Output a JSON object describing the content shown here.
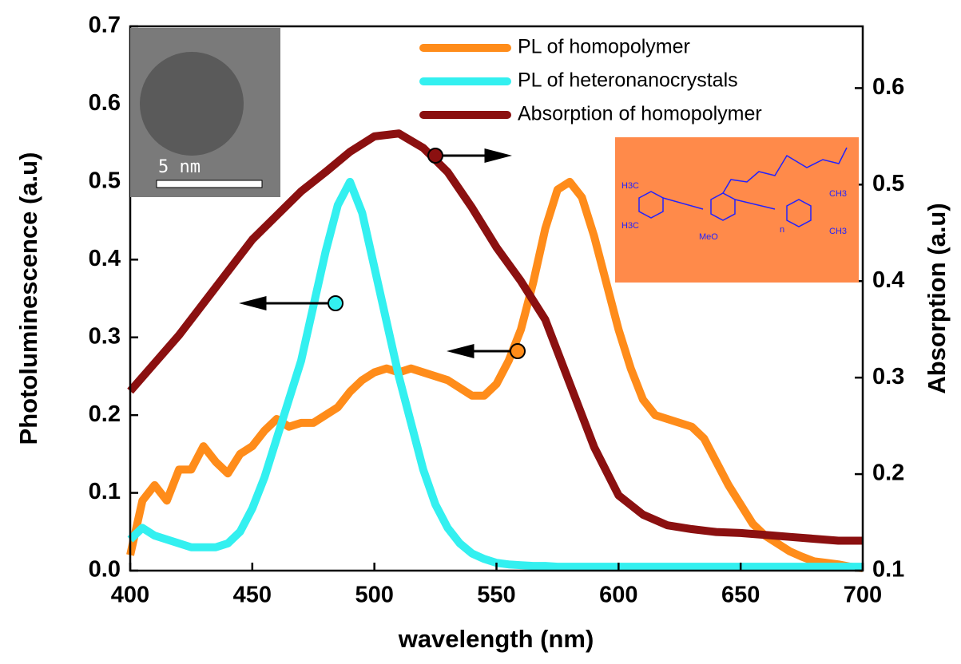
{
  "chart_data": {
    "type": "line",
    "xlabel": "wavelength (nm)",
    "ylabel": "Photoluminescence (a.u)",
    "y2label": "Absorption (a.u)",
    "xlim": [
      400,
      700
    ],
    "xticks": [
      400,
      450,
      500,
      550,
      600,
      650,
      700
    ],
    "ylim": [
      0,
      0.7
    ],
    "yticks": [
      {
        "value": 0,
        "label": "0.0"
      },
      0.1,
      0.2,
      0.3,
      0.4,
      0.5,
      0.6,
      0.7
    ],
    "y2lim": [
      0.1,
      0.664
    ],
    "y2ticks": [
      0.1,
      0.2,
      0.3,
      0.4,
      0.5,
      0.6
    ],
    "legend": "upper right",
    "series": [
      {
        "name": "PL of homopolymer",
        "color": "#ff8c1a",
        "x": [
          400,
          405,
          410,
          415,
          420,
          425,
          430,
          435,
          440,
          445,
          450,
          455,
          460,
          465,
          470,
          475,
          480,
          485,
          490,
          495,
          500,
          505,
          510,
          515,
          520,
          525,
          530,
          535,
          540,
          545,
          550,
          555,
          560,
          565,
          570,
          575,
          580,
          585,
          590,
          595,
          600,
          605,
          610,
          615,
          620,
          625,
          630,
          635,
          640,
          645,
          650,
          655,
          660,
          665,
          670,
          675,
          680,
          685,
          690,
          695,
          700
        ],
        "values": [
          0.02,
          0.09,
          0.11,
          0.09,
          0.13,
          0.13,
          0.16,
          0.14,
          0.125,
          0.15,
          0.16,
          0.18,
          0.195,
          0.185,
          0.19,
          0.19,
          0.2,
          0.21,
          0.23,
          0.245,
          0.255,
          0.26,
          0.255,
          0.26,
          0.255,
          0.25,
          0.245,
          0.235,
          0.225,
          0.225,
          0.24,
          0.27,
          0.31,
          0.37,
          0.44,
          0.49,
          0.5,
          0.48,
          0.43,
          0.37,
          0.31,
          0.26,
          0.22,
          0.2,
          0.195,
          0.19,
          0.185,
          0.17,
          0.14,
          0.11,
          0.085,
          0.06,
          0.045,
          0.035,
          0.025,
          0.018,
          0.012,
          0.01,
          0.008,
          0.005,
          0.003
        ]
      },
      {
        "name": "PL of heteronanocrystals",
        "color": "#33f0f0",
        "x": [
          400,
          405,
          410,
          415,
          420,
          425,
          430,
          435,
          440,
          445,
          450,
          455,
          460,
          465,
          470,
          475,
          480,
          485,
          490,
          495,
          500,
          505,
          510,
          515,
          520,
          525,
          530,
          535,
          540,
          545,
          550,
          555,
          560,
          565,
          570,
          575,
          580,
          585,
          590,
          595,
          600,
          605,
          610,
          615,
          620,
          625,
          630,
          635,
          640,
          645,
          650,
          655,
          660,
          665,
          670,
          675,
          680,
          685,
          690,
          695,
          700
        ],
        "values": [
          0.04,
          0.055,
          0.045,
          0.04,
          0.035,
          0.03,
          0.03,
          0.03,
          0.035,
          0.05,
          0.08,
          0.12,
          0.17,
          0.22,
          0.27,
          0.34,
          0.41,
          0.47,
          0.5,
          0.46,
          0.39,
          0.32,
          0.25,
          0.19,
          0.13,
          0.085,
          0.055,
          0.035,
          0.022,
          0.015,
          0.01,
          0.008,
          0.007,
          0.006,
          0.006,
          0.005,
          0.005,
          0.005,
          0.005,
          0.005,
          0.005,
          0.005,
          0.005,
          0.005,
          0.005,
          0.005,
          0.005,
          0.005,
          0.005,
          0.005,
          0.005,
          0.005,
          0.005,
          0.005,
          0.005,
          0.005,
          0.005,
          0.005,
          0.005,
          0.005,
          0.005
        ]
      },
      {
        "name": "Absorption of homopolymer",
        "color": "#8b1010",
        "axis": "y2",
        "x": [
          400,
          410,
          420,
          430,
          440,
          450,
          460,
          470,
          480,
          490,
          500,
          510,
          520,
          530,
          540,
          550,
          560,
          570,
          580,
          590,
          600,
          610,
          620,
          630,
          640,
          650,
          660,
          670,
          680,
          690,
          700
        ],
        "values": [
          0.286,
          0.315,
          0.344,
          0.377,
          0.41,
          0.443,
          0.468,
          0.493,
          0.513,
          0.534,
          0.55,
          0.553,
          0.538,
          0.513,
          0.476,
          0.435,
          0.4,
          0.36,
          0.294,
          0.228,
          0.178,
          0.158,
          0.147,
          0.143,
          0.14,
          0.139,
          0.137,
          0.135,
          0.133,
          0.131,
          0.131
        ]
      }
    ],
    "annotations": {
      "scale_bar": "5 nm",
      "structure": [
        "H3C",
        "H3C",
        "MeO",
        "n",
        "CH3",
        "CH3"
      ]
    }
  }
}
